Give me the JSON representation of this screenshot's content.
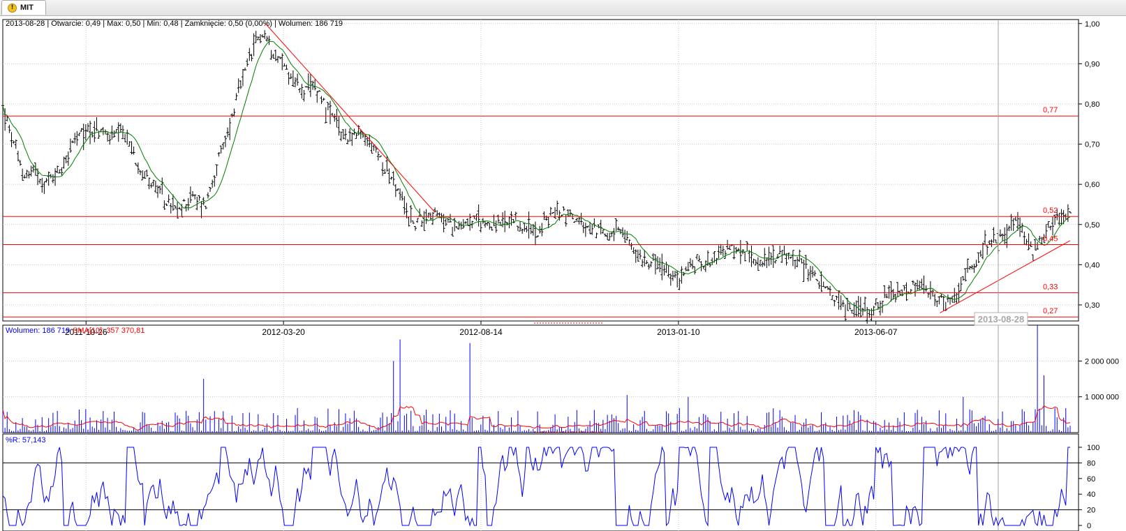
{
  "tab": {
    "label": "MIT",
    "icon": "warning-icon"
  },
  "colors": {
    "price_bar": "#000000",
    "moving_average": "#008000",
    "support_line": "#ff0000",
    "volume_bar": "#0000ff",
    "volume_sma": "#ff0000",
    "williams_r": "#0000ff",
    "grid": "#c8c8c8",
    "cursor": "#a0a0a0"
  },
  "chart_data": [
    {
      "type": "ohlc",
      "info": "2013-08-28 | Otwarcie: 0,49 | Max: 0,50 | Min: 0,48 | Zamknięcie: 0,50 (0,00%) | Wolumen: 186 719",
      "y_ticks": [
        "1,00",
        "0,90",
        "0,80",
        "0,70",
        "0,60",
        "0,50",
        "0,40",
        "0,30"
      ],
      "ylim": [
        0.26,
        1.01
      ],
      "x_ticks": [
        "2011-10-26",
        "2012-03-20",
        "2012-08-14",
        "2013-01-10",
        "2013-06-07"
      ],
      "cursor_label": "2013-08-28",
      "horizontal_lines": [
        {
          "label": "0,77",
          "value": 0.77
        },
        {
          "label": "0,52",
          "value": 0.52
        },
        {
          "label": "0,45",
          "value": 0.45
        },
        {
          "label": "0,33",
          "value": 0.33
        },
        {
          "label": "0,27",
          "value": 0.27
        }
      ],
      "trend_lines": [
        {
          "from": [
            0.246,
            1.0
          ],
          "to": [
            0.405,
            0.53
          ]
        },
        {
          "from": [
            0.878,
            0.28
          ],
          "to": [
            1.0,
            0.46
          ]
        }
      ],
      "price_path": [
        [
          0.0,
          0.79
        ],
        [
          0.01,
          0.7
        ],
        [
          0.02,
          0.62
        ],
        [
          0.03,
          0.64
        ],
        [
          0.04,
          0.6
        ],
        [
          0.055,
          0.64
        ],
        [
          0.065,
          0.7
        ],
        [
          0.08,
          0.74
        ],
        [
          0.1,
          0.72
        ],
        [
          0.115,
          0.72
        ],
        [
          0.125,
          0.66
        ],
        [
          0.14,
          0.6
        ],
        [
          0.155,
          0.55
        ],
        [
          0.165,
          0.53
        ],
        [
          0.175,
          0.57
        ],
        [
          0.19,
          0.55
        ],
        [
          0.2,
          0.64
        ],
        [
          0.21,
          0.72
        ],
        [
          0.22,
          0.82
        ],
        [
          0.23,
          0.9
        ],
        [
          0.242,
          0.98
        ],
        [
          0.255,
          0.93
        ],
        [
          0.27,
          0.87
        ],
        [
          0.28,
          0.83
        ],
        [
          0.295,
          0.84
        ],
        [
          0.305,
          0.78
        ],
        [
          0.32,
          0.72
        ],
        [
          0.335,
          0.72
        ],
        [
          0.345,
          0.7
        ],
        [
          0.36,
          0.64
        ],
        [
          0.375,
          0.55
        ],
        [
          0.385,
          0.5
        ],
        [
          0.4,
          0.53
        ],
        [
          0.42,
          0.5
        ],
        [
          0.44,
          0.51
        ],
        [
          0.46,
          0.5
        ],
        [
          0.48,
          0.5
        ],
        [
          0.5,
          0.48
        ],
        [
          0.515,
          0.53
        ],
        [
          0.53,
          0.53
        ],
        [
          0.545,
          0.49
        ],
        [
          0.565,
          0.48
        ],
        [
          0.58,
          0.48
        ],
        [
          0.595,
          0.42
        ],
        [
          0.61,
          0.41
        ],
        [
          0.63,
          0.36
        ],
        [
          0.645,
          0.4
        ],
        [
          0.66,
          0.41
        ],
        [
          0.68,
          0.44
        ],
        [
          0.695,
          0.43
        ],
        [
          0.71,
          0.41
        ],
        [
          0.725,
          0.42
        ],
        [
          0.74,
          0.42
        ],
        [
          0.755,
          0.39
        ],
        [
          0.77,
          0.34
        ],
        [
          0.785,
          0.3
        ],
        [
          0.8,
          0.29
        ],
        [
          0.815,
          0.29
        ],
        [
          0.83,
          0.32
        ],
        [
          0.845,
          0.33
        ],
        [
          0.86,
          0.35
        ],
        [
          0.875,
          0.31
        ],
        [
          0.89,
          0.31
        ],
        [
          0.905,
          0.38
        ],
        [
          0.92,
          0.44
        ],
        [
          0.935,
          0.47
        ],
        [
          0.95,
          0.51
        ],
        [
          0.965,
          0.43
        ],
        [
          0.98,
          0.5
        ],
        [
          0.99,
          0.52
        ],
        [
          1.0,
          0.53
        ]
      ]
    },
    {
      "type": "bar",
      "label": "Wolumen: 186 719",
      "overlay_label": "SMA[10]: 357 370,81",
      "y_ticks": [
        "2 000 000",
        "1 000 000"
      ],
      "ylim": [
        0,
        3000000
      ],
      "spikes": [
        [
          0.188,
          1500000
        ],
        [
          0.366,
          2000000
        ],
        [
          0.372,
          2600000
        ],
        [
          0.438,
          2500000
        ],
        [
          0.585,
          1050000
        ],
        [
          0.642,
          1000000
        ],
        [
          0.9,
          1000000
        ],
        [
          0.97,
          3000000
        ],
        [
          0.976,
          1600000
        ]
      ]
    },
    {
      "type": "line",
      "label": "%R: 57,143",
      "y_ticks": [
        "100",
        "80",
        "60",
        "40",
        "20",
        "0"
      ],
      "ylim": [
        0,
        100
      ],
      "reference_lines": [
        80,
        20
      ]
    }
  ]
}
